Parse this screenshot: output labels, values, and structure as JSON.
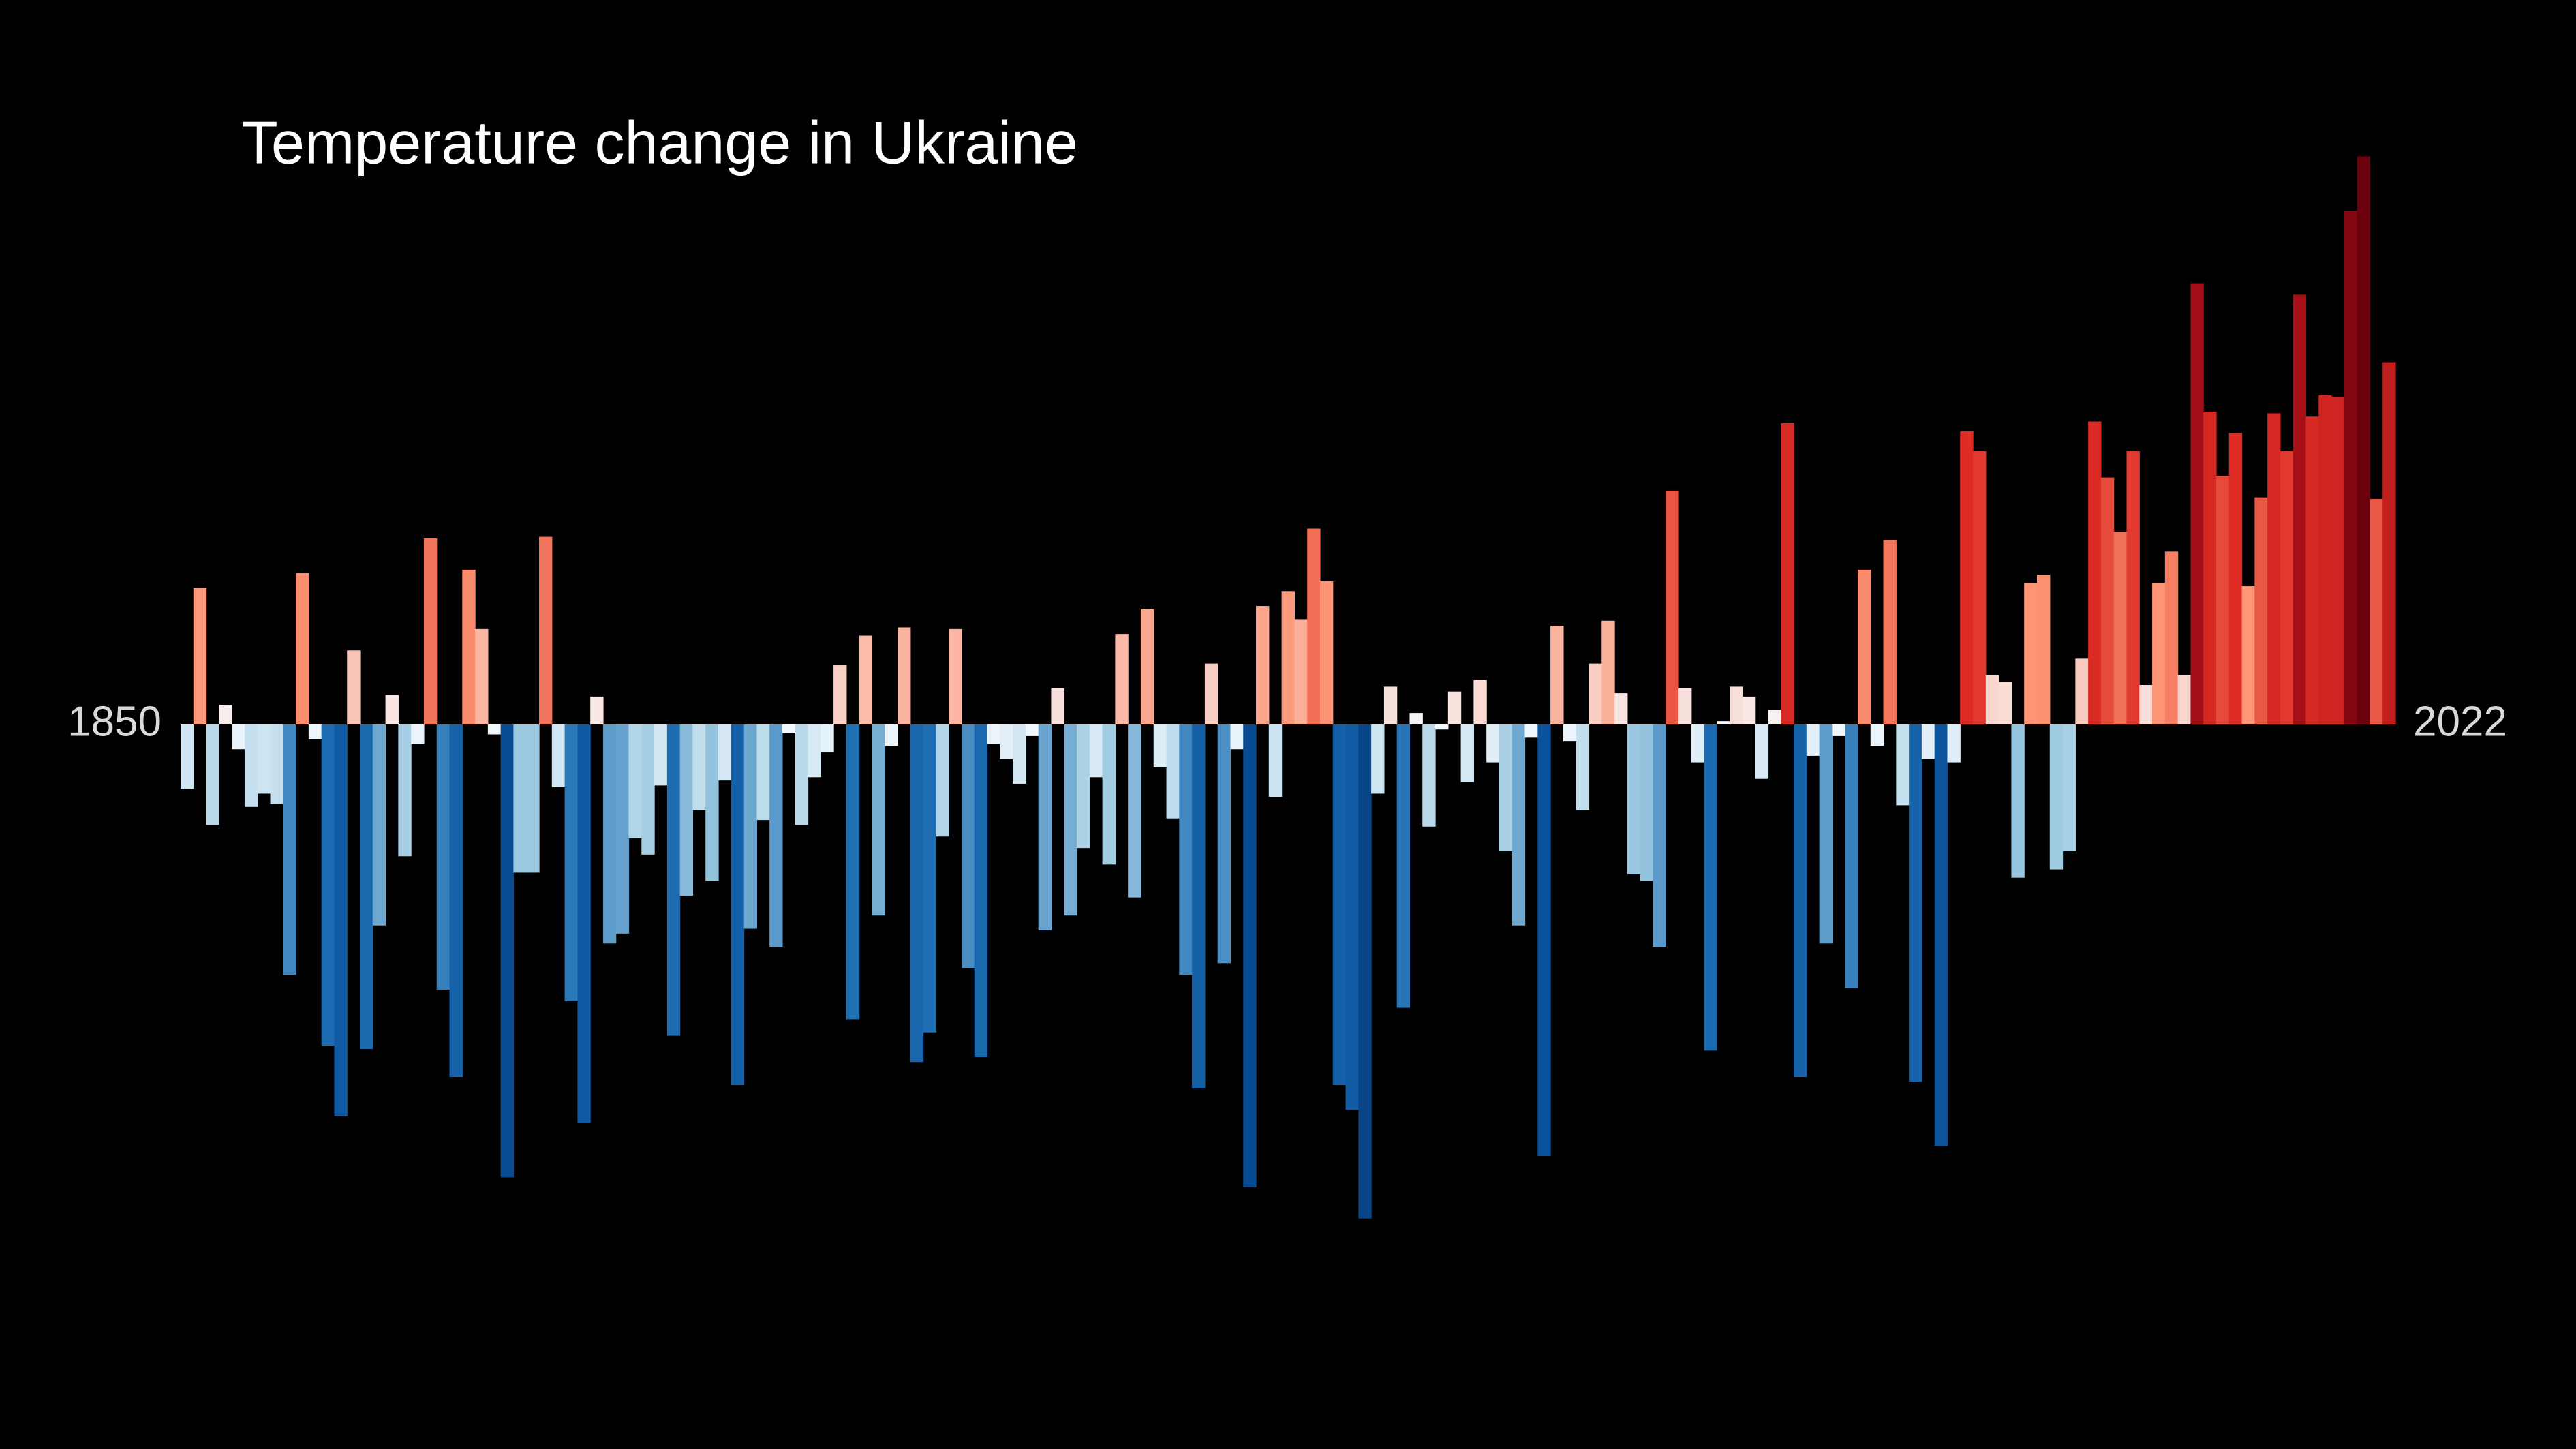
{
  "chart_data": {
    "type": "bar",
    "title": "Temperature change in Ukraine",
    "categories": [
      "1850",
      null,
      null,
      null,
      null,
      null,
      null,
      null,
      null,
      null,
      null,
      null,
      null,
      null,
      null,
      null,
      null,
      null,
      null,
      null,
      null,
      null,
      null,
      null,
      null,
      null,
      null,
      null,
      null,
      null,
      null,
      null,
      null,
      null,
      null,
      null,
      null,
      null,
      null,
      null,
      null,
      null,
      null,
      null,
      null,
      null,
      null,
      null,
      null,
      null,
      null,
      null,
      null,
      null,
      null,
      null,
      null,
      null,
      null,
      null,
      null,
      null,
      null,
      null,
      null,
      null,
      null,
      null,
      null,
      null,
      null,
      null,
      null,
      null,
      null,
      null,
      null,
      null,
      null,
      null,
      null,
      null,
      null,
      null,
      null,
      null,
      null,
      null,
      null,
      null,
      null,
      null,
      null,
      null,
      null,
      null,
      null,
      null,
      null,
      null,
      null,
      null,
      null,
      null,
      null,
      null,
      null,
      null,
      null,
      null,
      null,
      null,
      null,
      null,
      null,
      null,
      null,
      null,
      null,
      null,
      null,
      null,
      null,
      null,
      null,
      null,
      null,
      null,
      null,
      null,
      null,
      null,
      null,
      null,
      null,
      null,
      null,
      null,
      null,
      null,
      null,
      null,
      null,
      null,
      null,
      null,
      null,
      null,
      null,
      null,
      null,
      null,
      null,
      null,
      null,
      null,
      null,
      null,
      null,
      null,
      null,
      null,
      null,
      null,
      null,
      null,
      null,
      null,
      null,
      null,
      null,
      null,
      "2022"
    ],
    "values": [
      -0.39,
      0.83,
      -0.61,
      0.12,
      -0.15,
      -0.5,
      -0.42,
      -0.48,
      -1.52,
      0.92,
      -0.09,
      -1.95,
      -2.38,
      0.45,
      -1.97,
      -1.22,
      0.18,
      -0.8,
      -0.12,
      1.13,
      -1.61,
      -2.14,
      0.94,
      0.58,
      -0.06,
      -2.75,
      -0.9,
      -0.9,
      1.14,
      -0.38,
      -1.68,
      -2.42,
      0.17,
      -1.33,
      -1.27,
      -0.69,
      -0.79,
      -0.37,
      -1.89,
      -1.04,
      -0.52,
      -0.95,
      -0.34,
      -2.19,
      -1.24,
      -0.58,
      -1.35,
      -0.05,
      -0.61,
      -0.32,
      -0.17,
      0.36,
      -1.79,
      0.54,
      -1.16,
      -0.13,
      0.59,
      -2.05,
      -1.87,
      -0.68,
      0.58,
      -1.48,
      -2.02,
      -0.12,
      -0.21,
      -0.36,
      -0.07,
      -1.25,
      0.22,
      -1.16,
      -0.75,
      -0.32,
      -0.85,
      0.55,
      -1.05,
      0.7,
      -0.26,
      -0.57,
      -1.52,
      -2.21,
      0.37,
      -1.45,
      -0.15,
      -2.81,
      0.72,
      -0.44,
      0.81,
      0.64,
      1.19,
      0.87,
      -2.19,
      -2.34,
      -3.0,
      -0.42,
      0.23,
      -1.72,
      0.07,
      -0.62,
      -0.03,
      0.2,
      -0.35,
      0.27,
      -0.23,
      -0.77,
      -1.22,
      -0.08,
      -2.62,
      0.6,
      -0.1,
      -0.52,
      0.37,
      0.63,
      0.19,
      -0.91,
      -0.95,
      -1.35,
      1.42,
      0.22,
      -0.23,
      -1.98,
      0.02,
      0.23,
      0.17,
      -0.33,
      0.09,
      1.83,
      -2.14,
      -0.19,
      -1.33,
      -0.07,
      -1.6,
      0.94,
      -0.13,
      1.12,
      -0.49,
      -2.17,
      -0.21,
      -2.56,
      -0.23,
      1.78,
      1.66,
      0.3,
      0.26,
      -0.93,
      0.86,
      0.91,
      -0.88,
      -0.77,
      0.4,
      1.84,
      1.5,
      1.17,
      1.66,
      0.24,
      0.86,
      1.05,
      0.3,
      2.68,
      1.9,
      1.51,
      1.77,
      0.84,
      1.38,
      1.89,
      1.66,
      2.61,
      1.87,
      2.0,
      1.99,
      3.12,
      3.45,
      1.37,
      2.2
    ],
    "ylim": [
      -4.4,
      4.4
    ],
    "colormap": [
      "#08306b",
      "#08306b",
      "#08519c",
      "#2171b5",
      "#9ecae1",
      "#f7fbff",
      "#fc9272",
      "#de2d26",
      "#a50f15",
      "#67000d",
      "#67000d"
    ],
    "background": "#000000"
  }
}
